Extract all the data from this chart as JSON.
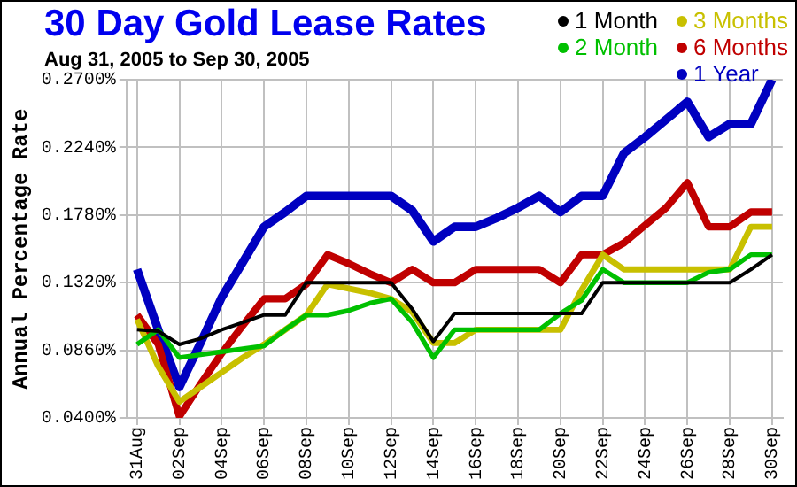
{
  "chart_data": {
    "type": "line",
    "title": "30 Day Gold Lease Rates",
    "subtitle": "Aug 31, 2005 to Sep 30, 2005",
    "ylabel": "Annual Percentage Rate",
    "categories": [
      "31Aug",
      null,
      "02Sep",
      null,
      "04Sep",
      null,
      "06Sep",
      null,
      "08Sep",
      null,
      "10Sep",
      null,
      "12Sep",
      null,
      "14Sep",
      null,
      "16Sep",
      null,
      "18Sep",
      null,
      "20Sep",
      null,
      "22Sep",
      null,
      "24Sep",
      null,
      "26Sep",
      null,
      "28Sep",
      null,
      "30Sep"
    ],
    "series": [
      {
        "name": "1 Month",
        "color": "#000000",
        "values": [
          0.1,
          0.099,
          0.09,
          0.094,
          0.1,
          0.105,
          0.11,
          0.11,
          0.132,
          0.132,
          0.132,
          0.132,
          0.132,
          0.114,
          0.092,
          0.111,
          0.111,
          0.111,
          0.111,
          0.111,
          0.111,
          0.111,
          0.132,
          0.132,
          0.132,
          0.132,
          0.132,
          0.132,
          0.132,
          0.141,
          0.151
        ]
      },
      {
        "name": "2 Month",
        "color": "#00c000",
        "values": [
          0.09,
          0.1,
          0.081,
          0.083,
          0.085,
          0.087,
          0.089,
          0.1,
          0.11,
          0.11,
          0.113,
          0.118,
          0.121,
          0.105,
          0.081,
          0.1,
          0.1,
          0.1,
          0.1,
          0.1,
          0.111,
          0.12,
          0.141,
          0.132,
          0.132,
          0.132,
          0.132,
          0.139,
          0.141,
          0.151,
          0.151
        ]
      },
      {
        "name": "3 Months",
        "color": "#c8c000",
        "values": [
          0.107,
          0.075,
          0.051,
          0.061,
          0.071,
          0.081,
          0.09,
          0.1,
          0.11,
          0.131,
          0.128,
          0.125,
          0.121,
          0.112,
          0.091,
          0.091,
          0.1,
          0.1,
          0.1,
          0.1,
          0.1,
          0.127,
          0.151,
          0.141,
          0.141,
          0.141,
          0.141,
          0.141,
          0.141,
          0.17,
          0.17
        ]
      },
      {
        "name": "6 Months",
        "color": "#c00000",
        "values": [
          0.11,
          0.09,
          0.041,
          0.063,
          0.084,
          0.103,
          0.121,
          0.121,
          0.131,
          0.151,
          0.145,
          0.138,
          0.132,
          0.141,
          0.132,
          0.132,
          0.141,
          0.141,
          0.141,
          0.141,
          0.132,
          0.151,
          0.151,
          0.159,
          0.171,
          0.183,
          0.2,
          0.17,
          0.17,
          0.18,
          0.18
        ]
      },
      {
        "name": "1 Year",
        "color": "#0000c0",
        "values": [
          0.141,
          0.1,
          0.061,
          0.091,
          0.122,
          0.146,
          0.17,
          0.18,
          0.191,
          0.191,
          0.191,
          0.191,
          0.191,
          0.181,
          0.16,
          0.17,
          0.17,
          0.176,
          0.183,
          0.191,
          0.18,
          0.191,
          0.191,
          0.22,
          0.231,
          0.243,
          0.255,
          0.231,
          0.24,
          0.24,
          0.27
        ]
      }
    ],
    "ylim": [
      0.04,
      0.27
    ],
    "yticks": [
      {
        "value": 0.04,
        "label": "0.0400%"
      },
      {
        "value": 0.086,
        "label": "0.0860%"
      },
      {
        "value": 0.132,
        "label": "0.1320%"
      },
      {
        "value": 0.178,
        "label": "0.1780%"
      },
      {
        "value": 0.224,
        "label": "0.2240%"
      },
      {
        "value": 0.27,
        "label": "0.2700%"
      }
    ],
    "grid": true,
    "legend": "top right",
    "marker": "none",
    "line_style": "solid"
  }
}
